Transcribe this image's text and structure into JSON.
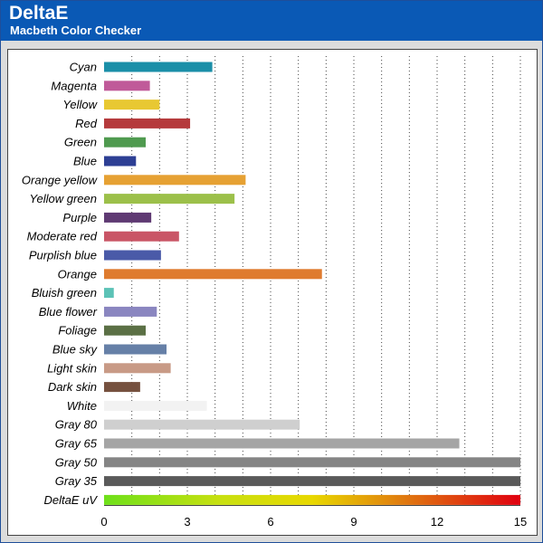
{
  "header": {
    "title": "DeltaE",
    "subtitle": "Macbeth Color Checker"
  },
  "chart_data": {
    "type": "bar",
    "orientation": "horizontal",
    "title": "DeltaE",
    "subtitle": "Macbeth Color Checker",
    "xlim": [
      0,
      15
    ],
    "x_ticks": [
      0,
      3,
      6,
      9,
      12,
      15
    ],
    "grid": true,
    "categories": [
      "Cyan",
      "Magenta",
      "Yellow",
      "Red",
      "Green",
      "Blue",
      "Orange yellow",
      "Yellow green",
      "Purple",
      "Moderate red",
      "Purplish blue",
      "Orange",
      "Bluish green",
      "Blue flower",
      "Foliage",
      "Blue sky",
      "Light skin",
      "Dark skin",
      "White",
      "Gray 80",
      "Gray 65",
      "Gray 50",
      "Gray 35",
      "DeltaE uV"
    ],
    "values": [
      3.9,
      1.65,
      2.0,
      3.1,
      1.5,
      1.15,
      5.1,
      4.7,
      1.7,
      2.7,
      2.05,
      7.85,
      0.35,
      1.9,
      1.5,
      2.25,
      2.4,
      1.3,
      3.7,
      7.05,
      12.8,
      15.0,
      15.0,
      15.0
    ],
    "colors": [
      "#1b8fa8",
      "#c05a99",
      "#e8c832",
      "#b53a3c",
      "#4f9a4f",
      "#2d3f94",
      "#e6a133",
      "#9cc04a",
      "#5f3a73",
      "#c95566",
      "#4a5aa8",
      "#df7b2e",
      "#5cc2b6",
      "#8a86c0",
      "#5b7045",
      "#6680a7",
      "#c89a86",
      "#76513f",
      "#f2f2f2",
      "#cfcfcf",
      "#a5a5a5",
      "#858585",
      "#5a5a5a",
      "gradient"
    ]
  }
}
